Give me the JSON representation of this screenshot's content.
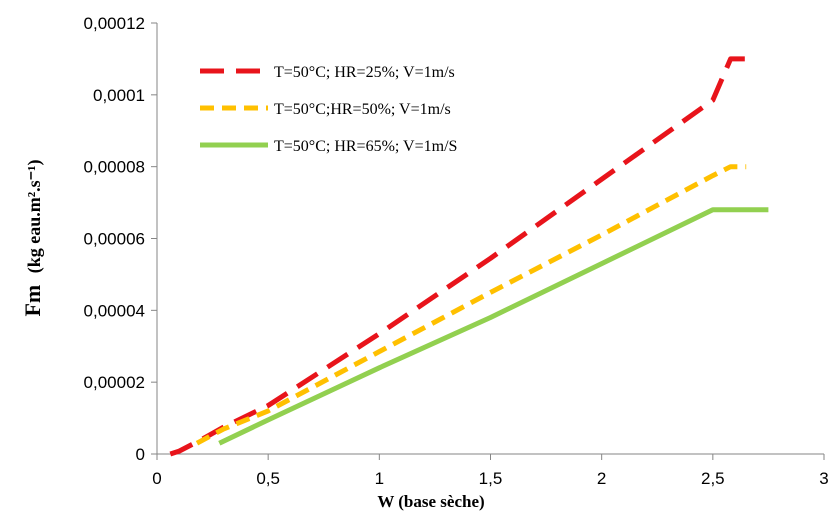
{
  "chart_data": {
    "type": "line",
    "xlabel": "W (base sèche)",
    "ylabel_main": "Fm",
    "ylabel_unit": "(kg eau.m².s⁻¹)",
    "xlim": [
      0,
      3
    ],
    "ylim": [
      0,
      0.00012
    ],
    "x_ticks": [
      0,
      0.5,
      1,
      1.5,
      2,
      2.5,
      3
    ],
    "x_tick_labels": [
      "0",
      "0,5",
      "1",
      "1,5",
      "2",
      "2,5",
      "3"
    ],
    "y_ticks": [
      0,
      2e-05,
      4e-05,
      6e-05,
      8e-05,
      0.0001,
      0.00012
    ],
    "y_tick_labels": [
      "0",
      "0,00002",
      "0,00004",
      "0,00006",
      "0,00008",
      "0,0001",
      "0,00012"
    ],
    "grid": false,
    "legend_position": "top-left",
    "series": [
      {
        "name": "T=50°C; HR=25%; V=1m/s",
        "color": "#e8141b",
        "style": "dashed-long",
        "x": [
          0.06,
          0.1,
          0.2,
          0.3,
          0.5,
          1.0,
          1.5,
          2.0,
          2.5,
          2.58,
          2.65
        ],
        "y": [
          0,
          8e-07,
          4e-06,
          7.5e-06,
          1.35e-05,
          3.35e-05,
          5.45e-05,
          7.65e-05,
          9.85e-05,
          0.00011,
          0.00011
        ]
      },
      {
        "name": "T=50°C;HR=50%; V=1m/s",
        "color": "#ffc000",
        "style": "dashed",
        "x": [
          0.18,
          0.3,
          0.5,
          1.0,
          1.5,
          2.0,
          2.5,
          2.58,
          2.65
        ],
        "y": [
          3e-06,
          7e-06,
          1.2e-05,
          2.85e-05,
          4.5e-05,
          6.1e-05,
          7.75e-05,
          8e-05,
          8e-05
        ]
      },
      {
        "name": "T=50°C; HR=65%; V=1m/S",
        "color": "#92d050",
        "style": "solid",
        "x": [
          0.28,
          0.5,
          1.0,
          1.5,
          2.0,
          2.5,
          2.75
        ],
        "y": [
          3e-06,
          9.5e-06,
          2.4e-05,
          3.8e-05,
          5.3e-05,
          6.8e-05,
          6.8e-05
        ]
      }
    ]
  }
}
